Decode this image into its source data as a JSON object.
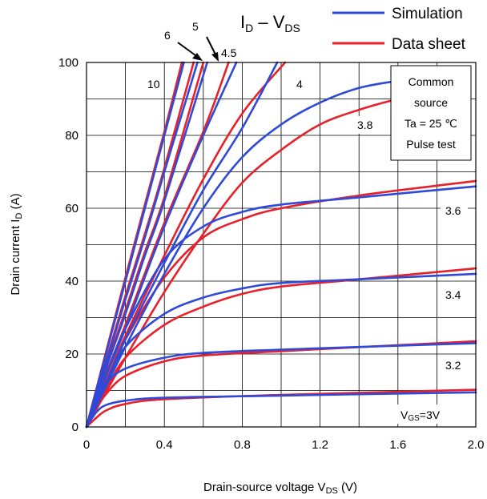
{
  "chart_data": {
    "type": "line",
    "title": {
      "main": "I",
      "sub_main": "D",
      "dash": " – V",
      "sub_tail": "DS"
    },
    "xlabel": {
      "main": "Drain-source voltage  V",
      "sub": "DS",
      "tail": " (V)"
    },
    "ylabel": {
      "main": "Drain current  I",
      "sub": "D",
      "tail": " (A)"
    },
    "xlim": [
      0,
      2.0
    ],
    "ylim": [
      0,
      100
    ],
    "x_ticks": [
      0,
      0.4,
      0.8,
      1.2,
      1.6,
      2.0
    ],
    "x_tick_labels": [
      "0",
      "0.4",
      "0.8",
      "1.2",
      "1.6",
      "2.0"
    ],
    "y_ticks": [
      0,
      20,
      40,
      60,
      80,
      100
    ],
    "y_tick_labels": [
      "0",
      "20",
      "40",
      "60",
      "80",
      "100"
    ],
    "grid": {
      "x_step": 0.2,
      "y_step": 10
    },
    "legend": {
      "position": "top-right, above plot",
      "entries": [
        {
          "label": "Simulation",
          "color": "#2f49d8"
        },
        {
          "label": "Data sheet",
          "color": "#e8202a"
        }
      ]
    },
    "annotation_box": {
      "lines": [
        "Common",
        "source",
        "Ta = 25 ℃",
        "Pulse test"
      ]
    },
    "vgs_label": {
      "main": "V",
      "sub": "GS",
      "tail": "=3V"
    },
    "curve_labels": [
      "10",
      "6",
      "5",
      "4.5",
      "4",
      "3.8",
      "3.6",
      "3.4",
      "3.2"
    ],
    "series": [
      {
        "name": "Simulation",
        "color": "#2f49d8",
        "curves": [
          {
            "vgs": "10",
            "points": [
              [
                0,
                0
              ],
              [
                0.1,
                20
              ],
              [
                0.2,
                40
              ],
              [
                0.3,
                60
              ],
              [
                0.4,
                80
              ],
              [
                0.5,
                100
              ]
            ]
          },
          {
            "vgs": "6",
            "points": [
              [
                0,
                0
              ],
              [
                0.1,
                17.5
              ],
              [
                0.2,
                35
              ],
              [
                0.3,
                52
              ],
              [
                0.4,
                70
              ],
              [
                0.57,
                100
              ]
            ]
          },
          {
            "vgs": "5",
            "points": [
              [
                0,
                0
              ],
              [
                0.1,
                16
              ],
              [
                0.2,
                31
              ],
              [
                0.3,
                47
              ],
              [
                0.4,
                62
              ],
              [
                0.62,
                100
              ]
            ]
          },
          {
            "vgs": "4.5",
            "points": [
              [
                0,
                0
              ],
              [
                0.1,
                14
              ],
              [
                0.2,
                27
              ],
              [
                0.4,
                55
              ],
              [
                0.6,
                80
              ],
              [
                0.77,
                100
              ]
            ]
          },
          {
            "vgs": "4",
            "points": [
              [
                0,
                0
              ],
              [
                0.1,
                12
              ],
              [
                0.2,
                24
              ],
              [
                0.4,
                45
              ],
              [
                0.6,
                65
              ],
              [
                0.8,
                82
              ],
              [
                0.98,
                100
              ]
            ]
          },
          {
            "vgs": "3.8",
            "points": [
              [
                0,
                0
              ],
              [
                0.2,
                22
              ],
              [
                0.4,
                42
              ],
              [
                0.6,
                60
              ],
              [
                0.8,
                74
              ],
              [
                1.0,
                83
              ],
              [
                1.2,
                89
              ],
              [
                1.4,
                93
              ],
              [
                1.6,
                95
              ]
            ]
          },
          {
            "vgs": "3.6",
            "points": [
              [
                0,
                0
              ],
              [
                0.1,
                14
              ],
              [
                0.2,
                27
              ],
              [
                0.4,
                46
              ],
              [
                0.6,
                55
              ],
              [
                0.8,
                59
              ],
              [
                1.0,
                61
              ],
              [
                1.4,
                63
              ],
              [
                2.0,
                66
              ]
            ]
          },
          {
            "vgs": "3.4",
            "points": [
              [
                0,
                0
              ],
              [
                0.1,
                12
              ],
              [
                0.2,
                22
              ],
              [
                0.4,
                31
              ],
              [
                0.6,
                35.5
              ],
              [
                0.8,
                38
              ],
              [
                1.0,
                39.5
              ],
              [
                1.4,
                40.5
              ],
              [
                2.0,
                42
              ]
            ]
          },
          {
            "vgs": "3.2",
            "points": [
              [
                0,
                0
              ],
              [
                0.05,
                7
              ],
              [
                0.1,
                12
              ],
              [
                0.2,
                16
              ],
              [
                0.4,
                19
              ],
              [
                0.6,
                20.3
              ],
              [
                1.0,
                21.2
              ],
              [
                2.0,
                23
              ]
            ]
          },
          {
            "vgs": "3",
            "points": [
              [
                0,
                0
              ],
              [
                0.05,
                4
              ],
              [
                0.1,
                6
              ],
              [
                0.2,
                7.2
              ],
              [
                0.4,
                8
              ],
              [
                1.0,
                8.6
              ],
              [
                2.0,
                9.5
              ]
            ]
          }
        ]
      },
      {
        "name": "Data sheet",
        "color": "#e8202a",
        "curves": [
          {
            "vgs": "10",
            "points": [
              [
                0,
                0
              ],
              [
                0.1,
                20.5
              ],
              [
                0.2,
                41
              ],
              [
                0.3,
                61
              ],
              [
                0.4,
                81
              ],
              [
                0.49,
                100
              ]
            ]
          },
          {
            "vgs": "6",
            "points": [
              [
                0,
                0
              ],
              [
                0.1,
                18
              ],
              [
                0.2,
                36
              ],
              [
                0.3,
                53
              ],
              [
                0.4,
                71
              ],
              [
                0.55,
                100
              ]
            ]
          },
          {
            "vgs": "5",
            "points": [
              [
                0,
                0
              ],
              [
                0.1,
                16.5
              ],
              [
                0.2,
                32
              ],
              [
                0.3,
                48
              ],
              [
                0.4,
                63
              ],
              [
                0.6,
                100
              ]
            ]
          },
          {
            "vgs": "4.5",
            "points": [
              [
                0,
                0
              ],
              [
                0.1,
                14.5
              ],
              [
                0.2,
                28
              ],
              [
                0.4,
                56
              ],
              [
                0.6,
                81
              ],
              [
                0.73,
                100
              ]
            ]
          },
          {
            "vgs": "4",
            "points": [
              [
                0,
                0
              ],
              [
                0.1,
                12.5
              ],
              [
                0.2,
                25
              ],
              [
                0.4,
                47
              ],
              [
                0.6,
                68
              ],
              [
                0.8,
                86
              ],
              [
                1.02,
                100
              ]
            ]
          },
          {
            "vgs": "3.8",
            "points": [
              [
                0,
                0
              ],
              [
                0.2,
                19
              ],
              [
                0.4,
                37
              ],
              [
                0.6,
                53
              ],
              [
                0.8,
                67
              ],
              [
                1.0,
                76
              ],
              [
                1.2,
                83
              ],
              [
                1.4,
                87
              ],
              [
                1.6,
                90
              ],
              [
                1.7,
                91
              ]
            ]
          },
          {
            "vgs": "3.6",
            "points": [
              [
                0,
                0
              ],
              [
                0.1,
                12
              ],
              [
                0.2,
                24
              ],
              [
                0.4,
                41
              ],
              [
                0.6,
                52
              ],
              [
                0.8,
                57
              ],
              [
                1.0,
                60
              ],
              [
                1.4,
                63.5
              ],
              [
                2.0,
                67.5
              ]
            ]
          },
          {
            "vgs": "3.4",
            "points": [
              [
                0,
                0
              ],
              [
                0.1,
                10
              ],
              [
                0.2,
                19
              ],
              [
                0.4,
                28
              ],
              [
                0.6,
                33
              ],
              [
                0.8,
                36.5
              ],
              [
                1.0,
                38.5
              ],
              [
                1.4,
                40.5
              ],
              [
                2.0,
                43.5
              ]
            ]
          },
          {
            "vgs": "3.2",
            "points": [
              [
                0,
                0
              ],
              [
                0.05,
                5
              ],
              [
                0.1,
                9
              ],
              [
                0.2,
                14
              ],
              [
                0.4,
                18
              ],
              [
                0.6,
                19.6
              ],
              [
                1.0,
                20.8
              ],
              [
                2.0,
                23.5
              ]
            ]
          },
          {
            "vgs": "3",
            "points": [
              [
                0,
                0
              ],
              [
                0.05,
                2.5
              ],
              [
                0.1,
                4.5
              ],
              [
                0.2,
                6.3
              ],
              [
                0.4,
                7.6
              ],
              [
                1.0,
                8.8
              ],
              [
                2.0,
                10.2
              ]
            ]
          }
        ]
      }
    ]
  }
}
